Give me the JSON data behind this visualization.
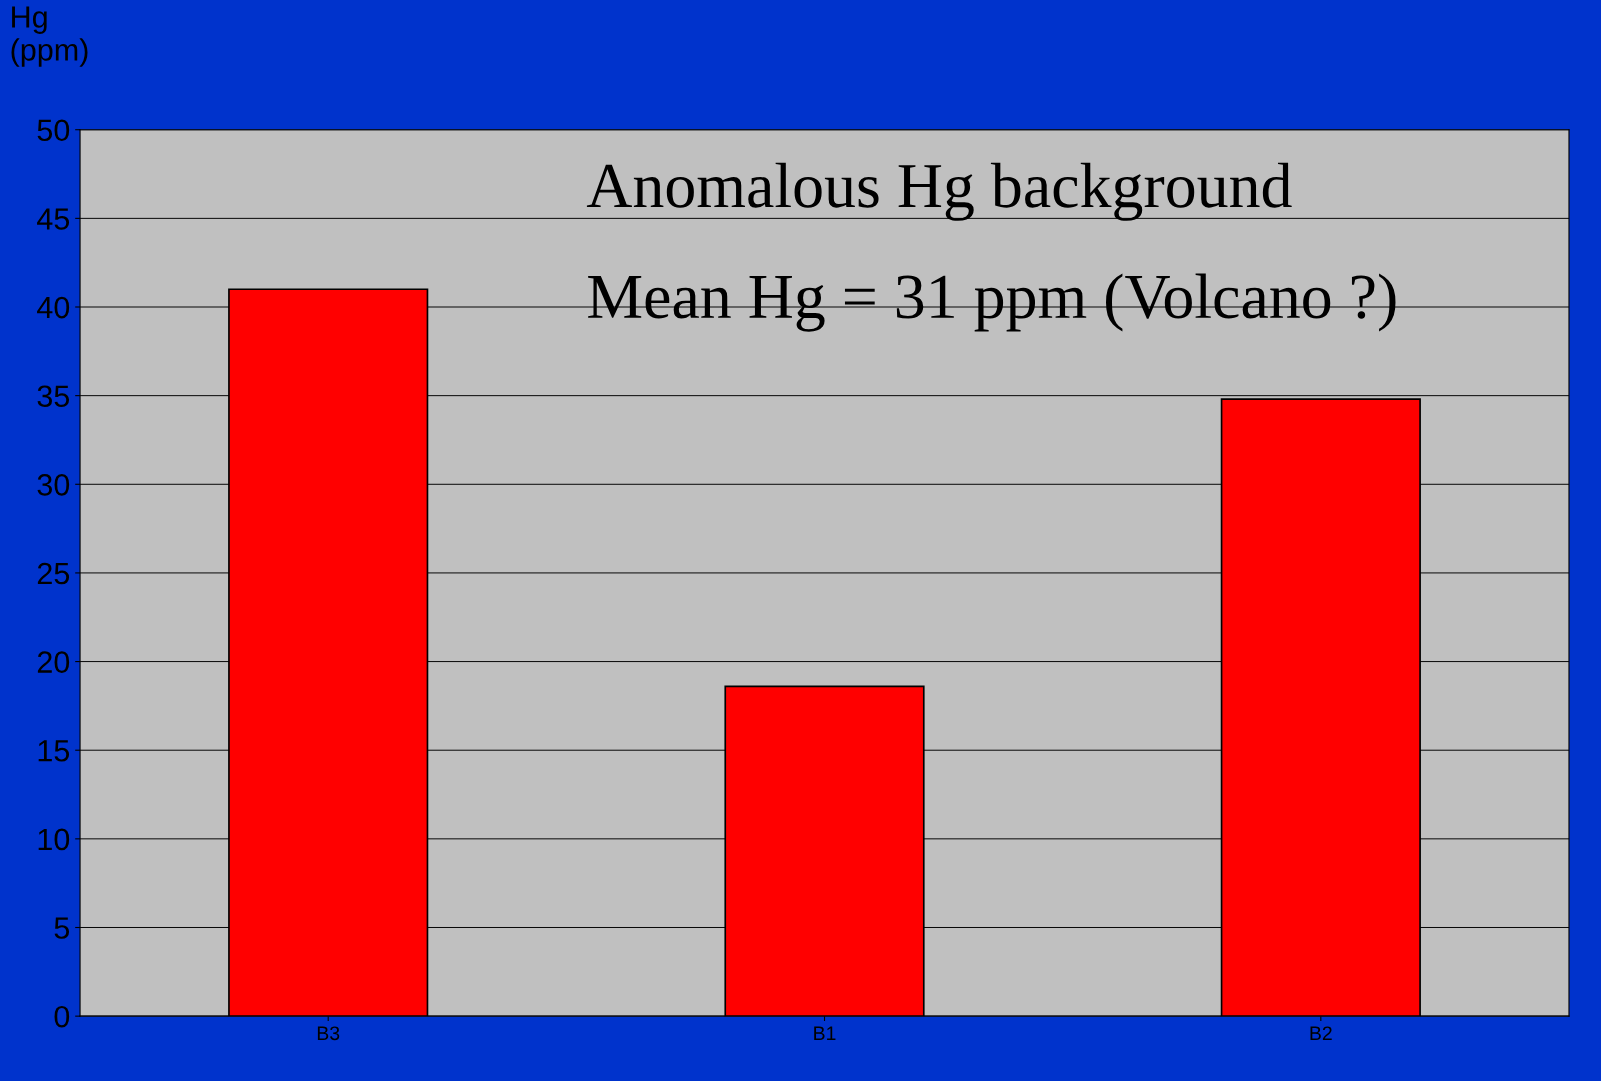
{
  "chart_data": {
    "type": "bar",
    "ylabel": "Hg\n(ppm)",
    "categories": [
      "B3",
      "B1",
      "B2"
    ],
    "values": [
      41,
      18.6,
      34.8
    ],
    "color": "#ff0000",
    "ylim": [
      0,
      50
    ],
    "yticks": [
      0,
      5,
      10,
      15,
      20,
      25,
      30,
      35,
      40,
      45,
      50
    ],
    "grid": "y",
    "legend": false,
    "annotations": [
      "Anomalous Hg background",
      "Mean Hg = 31 ppm (Volcano ?)"
    ]
  }
}
